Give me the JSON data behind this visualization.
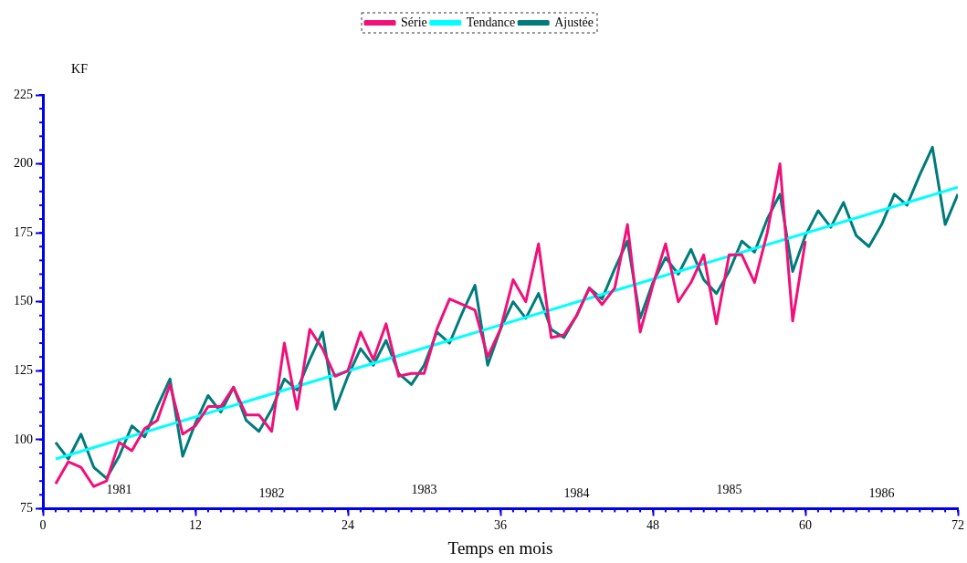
{
  "chart_data": {
    "type": "line",
    "xlabel": "Temps en mois",
    "ylabel": "KF",
    "x": [
      1,
      2,
      3,
      4,
      5,
      6,
      7,
      8,
      9,
      10,
      11,
      12,
      13,
      14,
      15,
      16,
      17,
      18,
      19,
      20,
      21,
      22,
      23,
      24,
      25,
      26,
      27,
      28,
      29,
      30,
      31,
      32,
      33,
      34,
      35,
      36,
      37,
      38,
      39,
      40,
      41,
      42,
      43,
      44,
      45,
      46,
      47,
      48,
      49,
      50,
      51,
      52,
      53,
      54,
      55,
      56,
      57,
      58,
      59,
      60
    ],
    "series": [
      {
        "name": "Série",
        "color": "#f0107a",
        "values": [
          84,
          92,
          90,
          83,
          85,
          99,
          96,
          104,
          107,
          120,
          102,
          105,
          112,
          112,
          119,
          109,
          109,
          103,
          135,
          111,
          140,
          133,
          123,
          125,
          139,
          129,
          142,
          123,
          124,
          124,
          140,
          151,
          149,
          147,
          130,
          140,
          158,
          150,
          171,
          137,
          138,
          145,
          155,
          149,
          155,
          178,
          139,
          156,
          171,
          150,
          157,
          167,
          142,
          167,
          167,
          157,
          175,
          200,
          143,
          172
        ]
      },
      {
        "name": "Tendance",
        "color": "#00ffff",
        "x": [
          1,
          72
        ],
        "values": [
          93,
          191.5
        ]
      },
      {
        "name": "Ajustée",
        "color": "#007b7b",
        "x": [
          1,
          2,
          3,
          4,
          5,
          6,
          7,
          8,
          9,
          10,
          11,
          12,
          13,
          14,
          15,
          16,
          17,
          18,
          19,
          20,
          21,
          22,
          23,
          24,
          25,
          26,
          27,
          28,
          29,
          30,
          31,
          32,
          33,
          34,
          35,
          36,
          37,
          38,
          39,
          40,
          41,
          42,
          43,
          44,
          45,
          46,
          47,
          48,
          49,
          50,
          51,
          52,
          53,
          54,
          55,
          56,
          57,
          58,
          59,
          60,
          61,
          62,
          63,
          64,
          65,
          66,
          67,
          68,
          69,
          70,
          71,
          72
        ],
        "values": [
          99,
          93,
          102,
          90,
          86,
          94,
          105,
          101,
          112,
          122,
          94,
          106,
          116,
          110,
          119,
          107,
          103,
          111,
          122,
          118,
          129,
          139,
          111,
          123,
          133,
          127,
          136,
          124,
          120,
          127,
          139,
          135,
          146,
          156,
          127,
          140,
          150,
          144,
          153,
          140,
          137,
          145,
          155,
          151,
          162,
          172,
          144,
          157,
          166,
          160,
          169,
          158,
          153,
          161,
          172,
          168,
          180,
          189,
          161,
          174,
          183,
          177,
          186,
          174,
          170,
          178,
          189,
          185,
          196,
          206,
          178,
          189
        ]
      }
    ],
    "xlim": [
      0,
      72
    ],
    "xticks": [
      0,
      12,
      24,
      36,
      48,
      60,
      72
    ],
    "ylim": [
      75,
      225
    ],
    "yticks": [
      75,
      100,
      125,
      150,
      175,
      200,
      225
    ],
    "annotations": [
      "1981",
      "1982",
      "1983",
      "1984",
      "1985",
      "1986"
    ],
    "grid": false,
    "legend": "top",
    "marker": "none",
    "line_style": "solid"
  }
}
